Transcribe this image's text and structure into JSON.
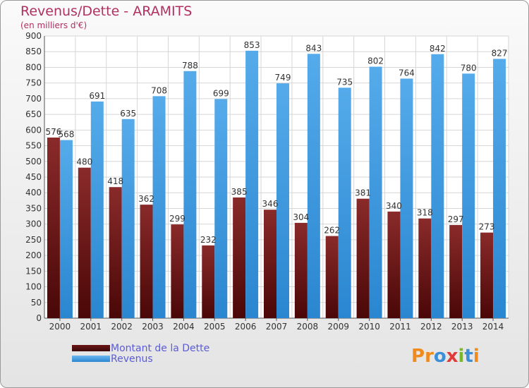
{
  "title": "Revenus/Dette - ARAMITS",
  "subtitle": "(en milliers d'€)",
  "chart_data": {
    "type": "bar",
    "categories": [
      "2000",
      "2001",
      "2002",
      "2003",
      "2004",
      "2005",
      "2006",
      "2007",
      "2008",
      "2009",
      "2010",
      "2011",
      "2012",
      "2013",
      "2014"
    ],
    "series": [
      {
        "name": "Montant de la Dette",
        "values": [
          576,
          480,
          418,
          362,
          299,
          232,
          385,
          346,
          304,
          262,
          381,
          340,
          318,
          297,
          273
        ],
        "color": "#7a1c1c"
      },
      {
        "name": "Revenus",
        "values": [
          568,
          691,
          635,
          708,
          788,
          699,
          853,
          749,
          843,
          735,
          802,
          764,
          842,
          780,
          827
        ],
        "color": "#3f9de6"
      }
    ],
    "y_ticks": [
      0,
      50,
      100,
      150,
      200,
      250,
      300,
      350,
      400,
      450,
      500,
      550,
      600,
      650,
      700,
      750,
      800,
      850,
      900
    ],
    "ylim": [
      0,
      900
    ],
    "grid": true,
    "legend_position": "bottom-left"
  },
  "legend": {
    "items": [
      {
        "label": "Montant de la Dette",
        "color": "#6b1515"
      },
      {
        "label": "Revenus",
        "color": "#3f9de6"
      }
    ]
  },
  "logo": {
    "text": "Proxiti",
    "colors": [
      "#f08a1c",
      "#f08a1c",
      "#3a8fd8",
      "#e03a3a",
      "#7ab828",
      "#3a8fd8",
      "#f08a1c"
    ]
  }
}
